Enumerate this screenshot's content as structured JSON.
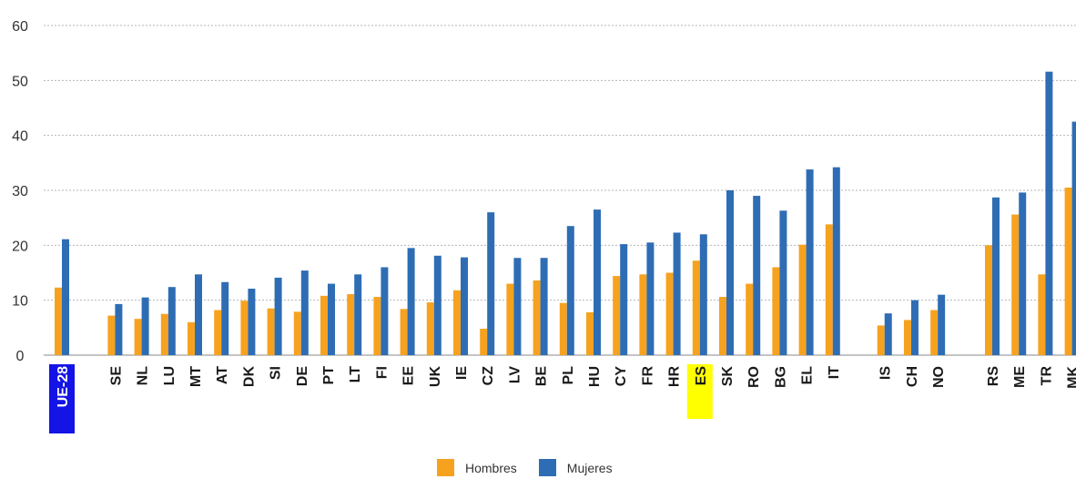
{
  "chart_data": {
    "type": "bar",
    "ylim": [
      0,
      60
    ],
    "yticks": [
      0,
      10,
      20,
      30,
      40,
      50,
      60
    ],
    "grid": true,
    "legend_position": "bottom-center",
    "colors": {
      "Hombres": "#f6a21f",
      "Mujeres": "#2e6db4"
    },
    "highlight": {
      "UE-28": "#1414e6",
      "ES": "#ffff00"
    },
    "groups": [
      [
        "UE-28"
      ],
      [
        "SE",
        "NL",
        "LU",
        "MT",
        "AT",
        "DK",
        "SI",
        "DE",
        "PT",
        "LT",
        "FI",
        "EE",
        "UK",
        "IE",
        "CZ",
        "LV",
        "BE",
        "PL",
        "HU",
        "CY",
        "FR",
        "HR",
        "ES",
        "SK",
        "RO",
        "BG",
        "EL",
        "IT"
      ],
      [
        "IS",
        "CH",
        "NO"
      ],
      [
        "RS",
        "ME",
        "TR",
        "MK"
      ]
    ],
    "categories": [
      "UE-28",
      "SE",
      "NL",
      "LU",
      "MT",
      "AT",
      "DK",
      "SI",
      "DE",
      "PT",
      "LT",
      "FI",
      "EE",
      "UK",
      "IE",
      "CZ",
      "LV",
      "BE",
      "PL",
      "HU",
      "CY",
      "FR",
      "HR",
      "ES",
      "SK",
      "RO",
      "BG",
      "EL",
      "IT",
      "IS",
      "CH",
      "NO",
      "RS",
      "ME",
      "TR",
      "MK"
    ],
    "series": [
      {
        "name": "Hombres",
        "values": [
          12.3,
          7.2,
          6.6,
          7.5,
          6.0,
          8.2,
          9.9,
          8.5,
          7.9,
          10.8,
          11.1,
          10.6,
          8.4,
          9.6,
          11.8,
          4.8,
          13.0,
          13.6,
          9.5,
          7.8,
          14.4,
          14.7,
          15.0,
          17.2,
          10.6,
          13.0,
          16.0,
          20.1,
          23.8,
          5.4,
          6.4,
          8.2,
          20.0,
          25.6,
          14.7,
          30.5
        ]
      },
      {
        "name": "Mujeres",
        "values": [
          21.1,
          9.3,
          10.5,
          12.4,
          14.7,
          13.3,
          12.1,
          14.1,
          15.4,
          13.0,
          14.7,
          16.0,
          19.5,
          18.1,
          17.8,
          26.0,
          17.7,
          17.7,
          23.5,
          26.5,
          20.2,
          20.5,
          22.3,
          22.0,
          30.0,
          29.0,
          26.3,
          33.8,
          34.2,
          7.6,
          10.0,
          11.0,
          28.7,
          29.6,
          51.6,
          42.5
        ]
      }
    ]
  }
}
